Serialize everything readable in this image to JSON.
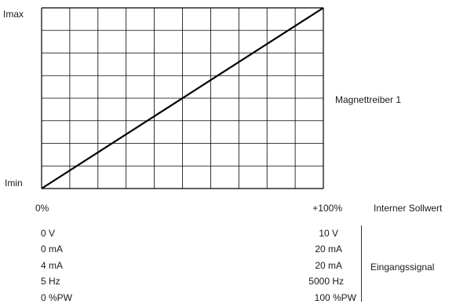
{
  "chart_data": {
    "type": "line",
    "y_top_label": "Imax",
    "y_bottom_label": "Imin",
    "x_start_label": "0%",
    "x_end_label": "+100%",
    "x_caption": "Interner Sollwert",
    "series_label": "Magnettreiber 1",
    "x": [
      0,
      100
    ],
    "y": [
      0,
      1
    ],
    "xlim": [
      0,
      100
    ],
    "ylim": [
      0,
      1
    ],
    "grid": {
      "columns": 10,
      "rows": 8,
      "on": true
    },
    "line_color": "#000000",
    "grid_color": "#000000"
  },
  "signals": {
    "caption": "Eingangssignal",
    "rows": [
      {
        "min": "0 V",
        "max": "10 V"
      },
      {
        "min": "0 mA",
        "max": "20 mA"
      },
      {
        "min": "4 mA",
        "max": "20 mA"
      },
      {
        "min": "5 Hz",
        "max": "5000 Hz"
      },
      {
        "min": "0 %PW",
        "max": "100 %PW"
      }
    ]
  }
}
